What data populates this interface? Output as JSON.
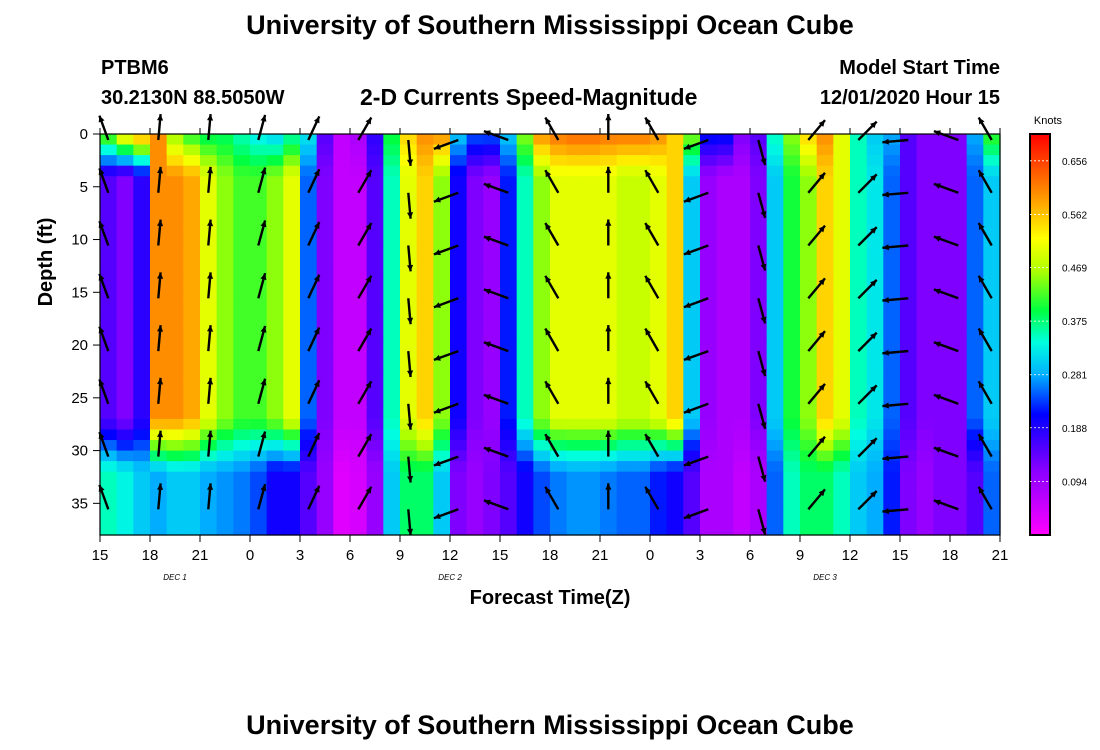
{
  "header": {
    "title": "University of Southern Mississippi Ocean Cube",
    "station_id": "PTBM6",
    "station_location": "30.2130N 88.5050W",
    "subtitle": "2-D Currents Speed-Magnitude",
    "model_start_label": "Model Start Time",
    "model_start_value": "12/01/2020 Hour 15"
  },
  "footer": {
    "title": "University of Southern Mississippi Ocean Cube"
  },
  "chart_data": {
    "type": "heatmap",
    "title": "2-D Currents Speed-Magnitude",
    "xlabel": "Forecast Time(Z)",
    "ylabel": "Depth (ft)",
    "x_unit": "hours since 12/01/2020 15Z",
    "xlim": [
      0,
      54
    ],
    "ylim": [
      0,
      38
    ],
    "x_ticks": [
      {
        "h": 0,
        "label": "15"
      },
      {
        "h": 3,
        "label": "18"
      },
      {
        "h": 6,
        "label": "21"
      },
      {
        "h": 9,
        "label": "0"
      },
      {
        "h": 12,
        "label": "3"
      },
      {
        "h": 15,
        "label": "6"
      },
      {
        "h": 18,
        "label": "9"
      },
      {
        "h": 21,
        "label": "12"
      },
      {
        "h": 24,
        "label": "15"
      },
      {
        "h": 27,
        "label": "18"
      },
      {
        "h": 30,
        "label": "21"
      },
      {
        "h": 33,
        "label": "0"
      },
      {
        "h": 36,
        "label": "3"
      },
      {
        "h": 39,
        "label": "6"
      },
      {
        "h": 42,
        "label": "9"
      },
      {
        "h": 45,
        "label": "12"
      },
      {
        "h": 48,
        "label": "15"
      },
      {
        "h": 51,
        "label": "18"
      },
      {
        "h": 54,
        "label": "21"
      }
    ],
    "y_ticks": [
      0,
      5,
      10,
      15,
      20,
      25,
      30,
      35
    ],
    "day_labels": [
      {
        "h": 4.5,
        "label": "DEC 1"
      },
      {
        "h": 21,
        "label": "DEC 2"
      },
      {
        "h": 43.5,
        "label": "DEC 3"
      }
    ],
    "colorbar": {
      "unit": "Knots",
      "min": 0.0,
      "max": 0.703,
      "ticks": [
        0.656,
        0.562,
        0.469,
        0.375,
        0.281,
        0.188,
        0.094
      ]
    },
    "speed_profile_knots": [
      {
        "h": 0,
        "surface": 0.45,
        "mid": 0.15,
        "bottom": 0.35
      },
      {
        "h": 1,
        "surface": 0.55,
        "mid": 0.12,
        "bottom": 0.33
      },
      {
        "h": 2,
        "surface": 0.6,
        "mid": 0.18,
        "bottom": 0.3
      },
      {
        "h": 3,
        "surface": 0.6,
        "mid": 0.6,
        "bottom": 0.28
      },
      {
        "h": 4,
        "surface": 0.45,
        "mid": 0.6,
        "bottom": 0.3
      },
      {
        "h": 5,
        "surface": 0.4,
        "mid": 0.58,
        "bottom": 0.3
      },
      {
        "h": 6,
        "surface": 0.38,
        "mid": 0.5,
        "bottom": 0.28
      },
      {
        "h": 7,
        "surface": 0.38,
        "mid": 0.45,
        "bottom": 0.27
      },
      {
        "h": 8,
        "surface": 0.35,
        "mid": 0.42,
        "bottom": 0.26
      },
      {
        "h": 9,
        "surface": 0.32,
        "mid": 0.42,
        "bottom": 0.24
      },
      {
        "h": 10,
        "surface": 0.3,
        "mid": 0.45,
        "bottom": 0.2
      },
      {
        "h": 11,
        "surface": 0.35,
        "mid": 0.5,
        "bottom": 0.2
      },
      {
        "h": 12,
        "surface": 0.32,
        "mid": 0.25,
        "bottom": 0.15
      },
      {
        "h": 13,
        "surface": 0.15,
        "mid": 0.12,
        "bottom": 0.1
      },
      {
        "h": 14,
        "surface": 0.06,
        "mid": 0.06,
        "bottom": 0.03
      },
      {
        "h": 15,
        "surface": 0.08,
        "mid": 0.06,
        "bottom": 0.04
      },
      {
        "h": 16,
        "surface": 0.18,
        "mid": 0.15,
        "bottom": 0.1
      },
      {
        "h": 17,
        "surface": 0.4,
        "mid": 0.35,
        "bottom": 0.3
      },
      {
        "h": 18,
        "surface": 0.55,
        "mid": 0.5,
        "bottom": 0.38
      },
      {
        "h": 19,
        "surface": 0.6,
        "mid": 0.55,
        "bottom": 0.38
      },
      {
        "h": 20,
        "surface": 0.6,
        "mid": 0.45,
        "bottom": 0.3
      },
      {
        "h": 21,
        "surface": 0.3,
        "mid": 0.2,
        "bottom": 0.12
      },
      {
        "h": 22,
        "surface": 0.25,
        "mid": 0.12,
        "bottom": 0.1
      },
      {
        "h": 23,
        "surface": 0.25,
        "mid": 0.1,
        "bottom": 0.12
      },
      {
        "h": 24,
        "surface": 0.3,
        "mid": 0.22,
        "bottom": 0.15
      },
      {
        "h": 25,
        "surface": 0.45,
        "mid": 0.35,
        "bottom": 0.2
      },
      {
        "h": 26,
        "surface": 0.6,
        "mid": 0.45,
        "bottom": 0.24
      },
      {
        "h": 27,
        "surface": 0.62,
        "mid": 0.5,
        "bottom": 0.26
      },
      {
        "h": 28,
        "surface": 0.63,
        "mid": 0.5,
        "bottom": 0.27
      },
      {
        "h": 29,
        "surface": 0.63,
        "mid": 0.5,
        "bottom": 0.27
      },
      {
        "h": 30,
        "surface": 0.62,
        "mid": 0.5,
        "bottom": 0.26
      },
      {
        "h": 31,
        "surface": 0.62,
        "mid": 0.48,
        "bottom": 0.25
      },
      {
        "h": 32,
        "surface": 0.62,
        "mid": 0.48,
        "bottom": 0.25
      },
      {
        "h": 33,
        "surface": 0.6,
        "mid": 0.5,
        "bottom": 0.22
      },
      {
        "h": 34,
        "surface": 0.55,
        "mid": 0.55,
        "bottom": 0.2
      },
      {
        "h": 35,
        "surface": 0.45,
        "mid": 0.3,
        "bottom": 0.15
      },
      {
        "h": 36,
        "surface": 0.22,
        "mid": 0.1,
        "bottom": 0.08
      },
      {
        "h": 37,
        "surface": 0.22,
        "mid": 0.08,
        "bottom": 0.08
      },
      {
        "h": 38,
        "surface": 0.12,
        "mid": 0.08,
        "bottom": 0.06
      },
      {
        "h": 39,
        "surface": 0.15,
        "mid": 0.12,
        "bottom": 0.08
      },
      {
        "h": 40,
        "surface": 0.35,
        "mid": 0.3,
        "bottom": 0.25
      },
      {
        "h": 41,
        "surface": 0.45,
        "mid": 0.4,
        "bottom": 0.35
      },
      {
        "h": 42,
        "surface": 0.55,
        "mid": 0.45,
        "bottom": 0.38
      },
      {
        "h": 43,
        "surface": 0.6,
        "mid": 0.55,
        "bottom": 0.38
      },
      {
        "h": 44,
        "surface": 0.5,
        "mid": 0.5,
        "bottom": 0.35
      },
      {
        "h": 45,
        "surface": 0.35,
        "mid": 0.35,
        "bottom": 0.3
      },
      {
        "h": 46,
        "surface": 0.3,
        "mid": 0.32,
        "bottom": 0.28
      },
      {
        "h": 47,
        "surface": 0.28,
        "mid": 0.25,
        "bottom": 0.22
      },
      {
        "h": 48,
        "surface": 0.15,
        "mid": 0.15,
        "bottom": 0.12
      },
      {
        "h": 49,
        "surface": 0.12,
        "mid": 0.12,
        "bottom": 0.1
      },
      {
        "h": 50,
        "surface": 0.12,
        "mid": 0.12,
        "bottom": 0.12
      },
      {
        "h": 51,
        "surface": 0.12,
        "mid": 0.12,
        "bottom": 0.12
      },
      {
        "h": 52,
        "surface": 0.28,
        "mid": 0.25,
        "bottom": 0.15
      },
      {
        "h": 53,
        "surface": 0.42,
        "mid": 0.3,
        "bottom": 0.25
      },
      {
        "h": 54,
        "surface": 0.45,
        "mid": 0.3,
        "bottom": 0.25
      }
    ],
    "vector_columns": [
      {
        "h": 0.5,
        "dir_deg": 340
      },
      {
        "h": 3.5,
        "dir_deg": 5
      },
      {
        "h": 6.5,
        "dir_deg": 5
      },
      {
        "h": 9.5,
        "dir_deg": 15
      },
      {
        "h": 12.5,
        "dir_deg": 25
      },
      {
        "h": 15.5,
        "dir_deg": 30
      },
      {
        "h": 18.5,
        "dir_deg": 175
      },
      {
        "h": 21.5,
        "dir_deg": 250
      },
      {
        "h": 24.5,
        "dir_deg": 290
      },
      {
        "h": 27.5,
        "dir_deg": 330
      },
      {
        "h": 30.5,
        "dir_deg": 0
      },
      {
        "h": 33.5,
        "dir_deg": 330
      },
      {
        "h": 36.5,
        "dir_deg": 250
      },
      {
        "h": 39.5,
        "dir_deg": 165
      },
      {
        "h": 42.5,
        "dir_deg": 40
      },
      {
        "h": 45.5,
        "dir_deg": 45
      },
      {
        "h": 48.5,
        "dir_deg": 265
      },
      {
        "h": 51.5,
        "dir_deg": 290
      },
      {
        "h": 53.5,
        "dir_deg": 330
      }
    ],
    "vector_depths_ft": [
      0,
      5,
      10,
      15,
      20,
      25,
      30,
      35
    ]
  }
}
